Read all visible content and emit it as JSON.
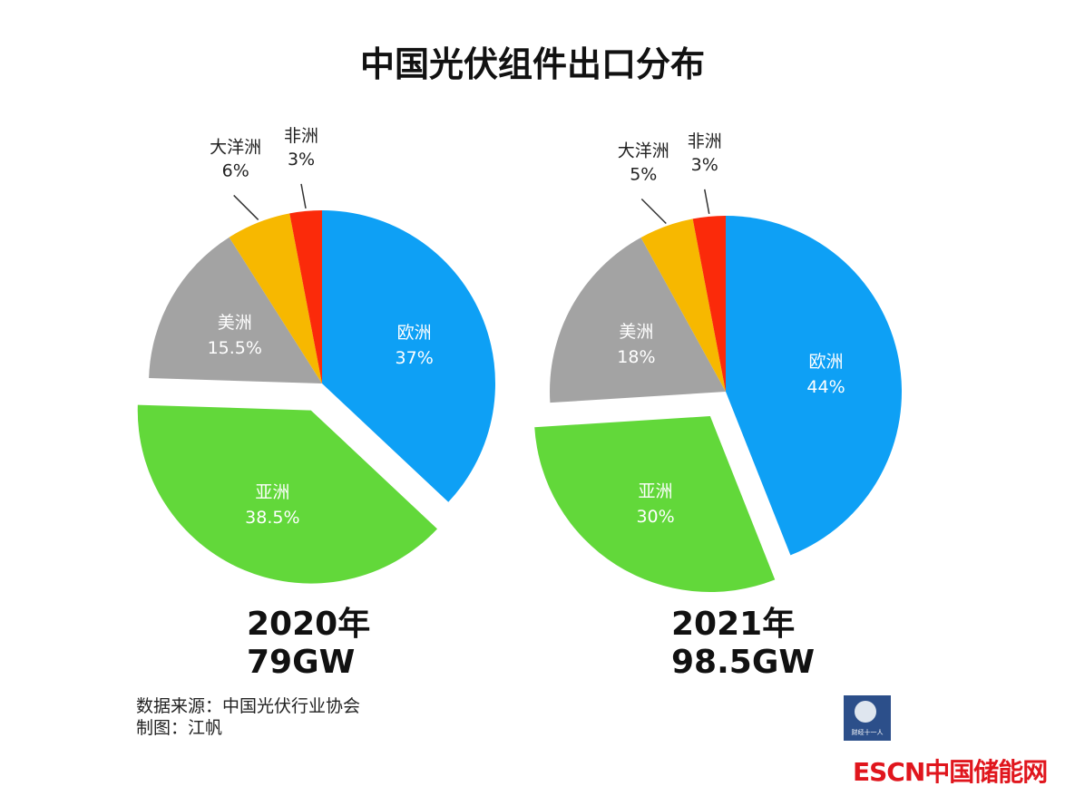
{
  "title": "中国光伏组件出口分布",
  "chart_data": [
    {
      "type": "pie",
      "caption_year": "2020年",
      "caption_total": "79GW",
      "slices": [
        {
          "label": "欧洲",
          "value": 37,
          "value_text": "37%",
          "color": "#0ea0f5"
        },
        {
          "label": "亚洲",
          "value": 38.5,
          "value_text": "38.5%",
          "color": "#62d83a",
          "exploded": true
        },
        {
          "label": "美洲",
          "value": 15.5,
          "value_text": "15.5%",
          "color": "#a3a3a3"
        },
        {
          "label": "大洋洲",
          "value": 6,
          "value_text": "6%",
          "color": "#f7b800"
        },
        {
          "label": "非洲",
          "value": 3,
          "value_text": "3%",
          "color": "#fb2a0a"
        }
      ]
    },
    {
      "type": "pie",
      "caption_year": "2021年",
      "caption_total": "98.5GW",
      "slices": [
        {
          "label": "欧洲",
          "value": 44,
          "value_text": "44%",
          "color": "#0ea0f5"
        },
        {
          "label": "亚洲",
          "value": 30,
          "value_text": "30%",
          "color": "#62d83a",
          "exploded": true
        },
        {
          "label": "美洲",
          "value": 18,
          "value_text": "18%",
          "color": "#a3a3a3"
        },
        {
          "label": "大洋洲",
          "value": 5,
          "value_text": "5%",
          "color": "#f7b800"
        },
        {
          "label": "非洲",
          "value": 3,
          "value_text": "3%",
          "color": "#fb2a0a"
        }
      ]
    }
  ],
  "source_line": "数据来源：中国光伏行业协会",
  "author_line": "制图：江帆",
  "logo_small_text": "财经十一人",
  "logo_brand": "ESCN中国储能网"
}
